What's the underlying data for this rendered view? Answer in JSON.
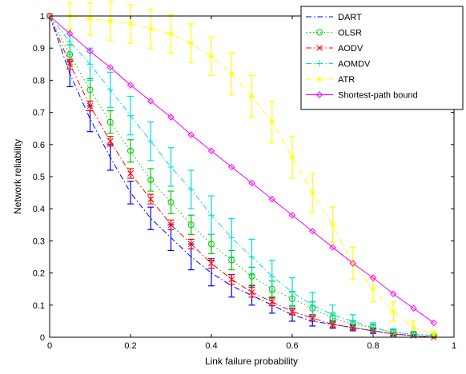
{
  "chart_data": {
    "type": "line",
    "xlabel": "Link failure probability",
    "ylabel": "Network reliability",
    "xlim": [
      0,
      1
    ],
    "ylim": [
      0,
      1
    ],
    "xticks": [
      "0",
      "0.2",
      "0.4",
      "0.6",
      "0.8",
      "1"
    ],
    "yticks": [
      "0",
      "0.1",
      "0.2",
      "0.3",
      "0.4",
      "0.5",
      "0.6",
      "0.7",
      "0.8",
      "0.9",
      "1"
    ],
    "grid": false,
    "legend_position": "top-right",
    "x": [
      0,
      0.05,
      0.1,
      0.15,
      0.2,
      0.25,
      0.3,
      0.35,
      0.4,
      0.45,
      0.5,
      0.55,
      0.6,
      0.65,
      0.7,
      0.75,
      0.8,
      0.85,
      0.9,
      0.95
    ],
    "series": [
      {
        "name": "DART",
        "color": "#0000ff",
        "line_style": "dash-dot",
        "marker": "none",
        "values": [
          1.0,
          0.82,
          0.68,
          0.56,
          0.45,
          0.37,
          0.31,
          0.25,
          0.2,
          0.16,
          0.13,
          0.1,
          0.07,
          0.05,
          0.04,
          0.03,
          0.02,
          0.01,
          0.005,
          0.0
        ],
        "error": [
          0,
          0.04,
          0.04,
          0.04,
          0.035,
          0.035,
          0.04,
          0.04,
          0.04,
          0.035,
          0.03,
          0.025,
          0.02,
          0.015,
          0.012,
          0.01,
          0.008,
          0.005,
          0.004,
          0.002
        ]
      },
      {
        "name": "OLSR",
        "color": "#00cc00",
        "line_style": "dotted",
        "marker": "circle",
        "values": [
          1.0,
          0.88,
          0.77,
          0.67,
          0.58,
          0.49,
          0.42,
          0.35,
          0.29,
          0.24,
          0.19,
          0.15,
          0.12,
          0.09,
          0.06,
          0.04,
          0.03,
          0.015,
          0.01,
          0.005
        ],
        "error": [
          0,
          0.03,
          0.035,
          0.035,
          0.035,
          0.035,
          0.035,
          0.03,
          0.03,
          0.03,
          0.028,
          0.025,
          0.022,
          0.02,
          0.015,
          0.012,
          0.01,
          0.008,
          0.005,
          0.003
        ]
      },
      {
        "name": "AODV",
        "color": "#ff0000",
        "line_style": "dash-dot",
        "marker": "x",
        "values": [
          1.0,
          0.85,
          0.72,
          0.61,
          0.51,
          0.43,
          0.35,
          0.29,
          0.23,
          0.18,
          0.14,
          0.11,
          0.08,
          0.06,
          0.04,
          0.03,
          0.02,
          0.01,
          0.005,
          0.0
        ],
        "error": [
          0,
          0.015,
          0.015,
          0.015,
          0.015,
          0.015,
          0.015,
          0.015,
          0.015,
          0.015,
          0.015,
          0.012,
          0.01,
          0.01,
          0.008,
          0.006,
          0.005,
          0.004,
          0.003,
          0.002
        ]
      },
      {
        "name": "AOMDV",
        "color": "#00dddd",
        "line_style": "dash-dot",
        "marker": "plus",
        "values": [
          1.0,
          0.92,
          0.85,
          0.77,
          0.69,
          0.61,
          0.53,
          0.46,
          0.38,
          0.31,
          0.25,
          0.19,
          0.14,
          0.1,
          0.07,
          0.05,
          0.03,
          0.015,
          0.01,
          0.005
        ],
        "error": [
          0,
          0.04,
          0.05,
          0.055,
          0.06,
          0.06,
          0.06,
          0.06,
          0.06,
          0.06,
          0.055,
          0.05,
          0.045,
          0.04,
          0.03,
          0.02,
          0.015,
          0.012,
          0.008,
          0.005
        ]
      },
      {
        "name": "ATR",
        "color": "#ffff00",
        "line_style": "dash-dot",
        "marker": "star",
        "values": [
          1.0,
          1.0,
          0.99,
          0.985,
          0.975,
          0.96,
          0.945,
          0.915,
          0.875,
          0.82,
          0.75,
          0.67,
          0.56,
          0.45,
          0.35,
          0.23,
          0.15,
          0.08,
          0.03,
          0.01
        ],
        "error": [
          0,
          0.04,
          0.05,
          0.06,
          0.06,
          0.06,
          0.06,
          0.06,
          0.06,
          0.065,
          0.065,
          0.065,
          0.065,
          0.06,
          0.055,
          0.05,
          0.04,
          0.03,
          0.02,
          0.01
        ]
      },
      {
        "name": "Shortest-path bound",
        "color": "#ff00ff",
        "line_style": "solid",
        "marker": "diamond",
        "values": [
          1.0,
          0.945,
          0.89,
          0.84,
          0.785,
          0.735,
          0.685,
          0.63,
          0.58,
          0.53,
          0.48,
          0.43,
          0.38,
          0.33,
          0.28,
          0.23,
          0.185,
          0.135,
          0.09,
          0.045
        ],
        "error": null
      }
    ]
  }
}
